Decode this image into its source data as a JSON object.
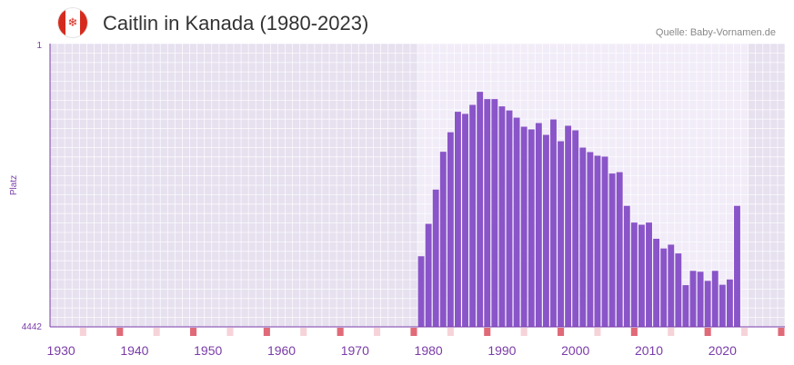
{
  "header": {
    "title": "Caitlin in Kanada (1980-2023)",
    "source": "Quelle: Baby-Vornamen.de",
    "flag_icon": "canada-flag-icon"
  },
  "colors": {
    "bar": "#8a55c8",
    "plot_bg": "#e6e0ef",
    "plot_bg_highlight": "#f1ecf8",
    "grid": "#ffffff",
    "axis": "#7a3ca8",
    "tick_label": "#7a3ca8",
    "marker_major": "#e06a78",
    "marker_minor": "#f6d3d9"
  },
  "chart_data": {
    "type": "bar",
    "title": "Caitlin in Kanada (1980-2023)",
    "ylabel": "Platz",
    "xlabel": "",
    "y_axis_reversed": true,
    "ylim": [
      1,
      4442
    ],
    "y_tick_labels": [
      "1",
      "4442"
    ],
    "xlim": [
      1929,
      2029
    ],
    "x_tick_labels": [
      "1930",
      "1940",
      "1950",
      "1960",
      "1970",
      "1980",
      "1990",
      "2000",
      "2010",
      "2020"
    ],
    "x_tick_values": [
      1930,
      1940,
      1950,
      1960,
      1970,
      1980,
      1990,
      2000,
      2010,
      2020
    ],
    "highlight_range": [
      1979,
      2023
    ],
    "series": [
      {
        "name": "Caitlin",
        "unit": "rank",
        "x": [
          1979,
          1980,
          1981,
          1982,
          1983,
          1984,
          1985,
          1986,
          1987,
          1988,
          1989,
          1990,
          1991,
          1992,
          1993,
          1994,
          1995,
          1996,
          1997,
          1998,
          1999,
          2000,
          2001,
          2002,
          2003,
          2004,
          2005,
          2006,
          2007,
          2008,
          2009,
          2010,
          2011,
          2012,
          2013,
          2014,
          2015,
          2016,
          2017,
          2018,
          2019,
          2020,
          2021,
          2022
        ],
        "values": [
          3335,
          2827,
          2290,
          1697,
          1391,
          1070,
          1103,
          962,
          757,
          871,
          871,
          985,
          1049,
          1162,
          1304,
          1346,
          1247,
          1432,
          1190,
          1532,
          1289,
          1361,
          1631,
          1702,
          1759,
          1773,
          2038,
          2017,
          2545,
          2807,
          2841,
          2807,
          3061,
          3213,
          3153,
          3291,
          3788,
          3564,
          3578,
          3721,
          3564,
          3782,
          3699,
          2545
        ]
      }
    ]
  }
}
